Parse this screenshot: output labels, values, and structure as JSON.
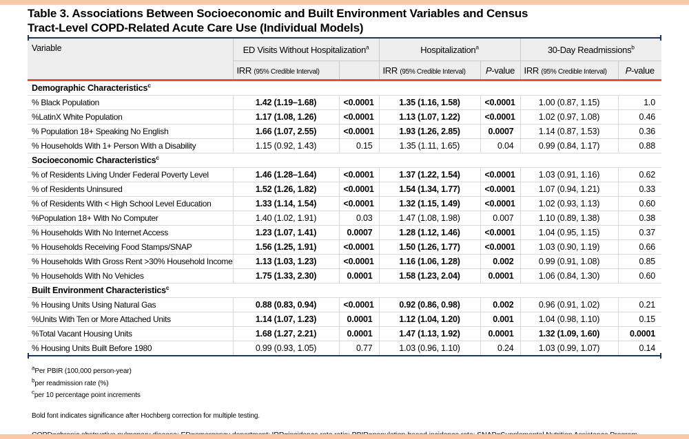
{
  "colors": {
    "accent_bar": "#f9c7a9",
    "rule_navy": "#17365d",
    "rule_orange": "#e8502d",
    "header_bg": "#efeeee"
  },
  "title": {
    "line1": "Table 3. Associations Between Socioeconomic and Built Environment Variables and Census",
    "line2": "Tract-Level COPD-Related Acute Care Use (Individual Models)"
  },
  "table": {
    "header": {
      "variable": "Variable",
      "groups": [
        {
          "label": "ED Visits Without Hospitalization",
          "sup": "a"
        },
        {
          "label": "Hospitalization",
          "sup": "a"
        },
        {
          "label": "30-Day Readmissions",
          "sup": "b"
        }
      ],
      "irr": "IRR",
      "ci": "(95% Credible Interval)",
      "p_italic": "P",
      "p_rest": "-value",
      "ed_p_header": ""
    },
    "sections": [
      {
        "label": "Demographic Characteristics",
        "sup": "c",
        "rows": [
          {
            "variable": "% Black Population",
            "cells": [
              {
                "t": "1.42 (1.19–1.68)",
                "b": true
              },
              {
                "t": "<0.0001",
                "b": true
              },
              {
                "t": "1.35 (1.16, 1.58)",
                "b": true
              },
              {
                "t": "<0.0001",
                "b": true
              },
              {
                "t": "1.00 (0.87, 1.15)",
                "b": false
              },
              {
                "t": "1.0",
                "b": false
              }
            ]
          },
          {
            "variable": "%LatinX White Population",
            "cells": [
              {
                "t": "1.17 (1.08, 1.26)",
                "b": true
              },
              {
                "t": "<0.0001",
                "b": true
              },
              {
                "t": "1.13 (1.07, 1.22)",
                "b": true
              },
              {
                "t": "<0.0001",
                "b": true
              },
              {
                "t": "1.02 (0.97, 1.08)",
                "b": false
              },
              {
                "t": "0.46",
                "b": false
              }
            ]
          },
          {
            "variable": "% Population 18+ Speaking No English",
            "cells": [
              {
                "t": "1.66 (1.07, 2.55)",
                "b": true
              },
              {
                "t": "<0.0001",
                "b": true
              },
              {
                "t": "1.93 (1.26, 2.85)",
                "b": true
              },
              {
                "t": "0.0007",
                "b": true
              },
              {
                "t": "1.14 (0.87, 1.53)",
                "b": false
              },
              {
                "t": "0.36",
                "b": false
              }
            ]
          },
          {
            "variable": "% Households With 1+ Person With a Disability",
            "cells": [
              {
                "t": "1.15 (0.92, 1.43)",
                "b": false
              },
              {
                "t": "0.15",
                "b": false
              },
              {
                "t": "1.35 (1.11, 1.65)",
                "b": false
              },
              {
                "t": "0.04",
                "b": false
              },
              {
                "t": "0.99 (0.84, 1.17)",
                "b": false
              },
              {
                "t": "0.88",
                "b": false
              }
            ]
          }
        ]
      },
      {
        "label": "Socioeconomic Characteristics",
        "sup": "c",
        "rows": [
          {
            "variable": "% of Residents Living Under Federal Poverty Level",
            "cells": [
              {
                "t": "1.46 (1.28–1.64)",
                "b": true
              },
              {
                "t": "<0.0001",
                "b": true
              },
              {
                "t": "1.37 (1.22, 1.54)",
                "b": true
              },
              {
                "t": "<0.0001",
                "b": true
              },
              {
                "t": "1.03 (0.91, 1.16)",
                "b": false
              },
              {
                "t": "0.62",
                "b": false
              }
            ]
          },
          {
            "variable": "% of Residents Uninsured",
            "cells": [
              {
                "t": "1.52 (1.26, 1.82)",
                "b": true
              },
              {
                "t": "<0.0001",
                "b": true
              },
              {
                "t": "1.54 (1.34, 1.77)",
                "b": true
              },
              {
                "t": "<0.0001",
                "b": true
              },
              {
                "t": "1.07 (0.94, 1.21)",
                "b": false
              },
              {
                "t": "0.33",
                "b": false
              }
            ]
          },
          {
            "variable": "% of Residents With < High School Level Education",
            "cells": [
              {
                "t": "1.33 (1.14, 1.54)",
                "b": true
              },
              {
                "t": "<0.0001",
                "b": true
              },
              {
                "t": "1.32 (1.15, 1.49)",
                "b": true
              },
              {
                "t": "<0.0001",
                "b": true
              },
              {
                "t": "1.02 (0.93, 1.13)",
                "b": false
              },
              {
                "t": "0.60",
                "b": false
              }
            ]
          },
          {
            "variable": "%Population 18+ With No Computer",
            "cells": [
              {
                "t": "1.40 (1.02, 1.91)",
                "b": false
              },
              {
                "t": "0.03",
                "b": false
              },
              {
                "t": "1.47 (1.08, 1.98)",
                "b": false
              },
              {
                "t": "0.007",
                "b": false
              },
              {
                "t": "1.10 (0.89, 1.38)",
                "b": false
              },
              {
                "t": "0.38",
                "b": false
              }
            ]
          },
          {
            "variable": "% Households With No Internet Access",
            "cells": [
              {
                "t": "1.23 (1.07, 1.41)",
                "b": true
              },
              {
                "t": "0.0007",
                "b": true
              },
              {
                "t": "1.28 (1.12, 1.46)",
                "b": true
              },
              {
                "t": "<0.0001",
                "b": true
              },
              {
                "t": "1.04 (0.95, 1.15)",
                "b": false
              },
              {
                "t": "0.37",
                "b": false
              }
            ]
          },
          {
            "variable": "% Households Receiving Food Stamps/SNAP",
            "cells": [
              {
                "t": "1.56 (1.25, 1.91)",
                "b": true
              },
              {
                "t": "<0.0001",
                "b": true
              },
              {
                "t": "1.50 (1.26, 1.77)",
                "b": true
              },
              {
                "t": "<0.0001",
                "b": true
              },
              {
                "t": "1.03 (0.90, 1.19)",
                "b": false
              },
              {
                "t": "0.66",
                "b": false
              }
            ]
          },
          {
            "variable": "% Households With Gross Rent >30% Household Income",
            "cells": [
              {
                "t": "1.13 (1.03, 1.23)",
                "b": true
              },
              {
                "t": "<0.0001",
                "b": true
              },
              {
                "t": "1.16 (1.06, 1.28)",
                "b": true
              },
              {
                "t": "0.002",
                "b": true
              },
              {
                "t": "0.99 (0.91, 1.08)",
                "b": false
              },
              {
                "t": "0.85",
                "b": false
              }
            ]
          },
          {
            "variable": "% Households With No Vehicles",
            "cells": [
              {
                "t": "1.75 (1.33, 2.30)",
                "b": true
              },
              {
                "t": "0.0001",
                "b": true
              },
              {
                "t": "1.58 (1.23, 2.04)",
                "b": true
              },
              {
                "t": "0.0001",
                "b": true
              },
              {
                "t": "1.06 (0.84, 1.30)",
                "b": false
              },
              {
                "t": "0.60",
                "b": false
              }
            ]
          }
        ]
      },
      {
        "label": "Built Environment Characteristics",
        "sup": "c",
        "rows": [
          {
            "variable": "% Housing Units Using Natural Gas",
            "cells": [
              {
                "t": "0.88 (0.83, 0.94)",
                "b": true
              },
              {
                "t": "<0.0001",
                "b": true
              },
              {
                "t": "0.92 (0.86, 0.98)",
                "b": true
              },
              {
                "t": "0.002",
                "b": true
              },
              {
                "t": "0.96 (0.91, 1.02)",
                "b": false
              },
              {
                "t": "0.21",
                "b": false
              }
            ]
          },
          {
            "variable": "%Units With Ten or More Attached Units",
            "cells": [
              {
                "t": "1.14 (1.07, 1.23)",
                "b": true
              },
              {
                "t": "0.0001",
                "b": true
              },
              {
                "t": "1.12 (1.04, 1.20)",
                "b": true
              },
              {
                "t": "0.001",
                "b": true
              },
              {
                "t": "1.04 (0.98, 1.10)",
                "b": false
              },
              {
                "t": "0.15",
                "b": false
              }
            ]
          },
          {
            "variable": "%Total Vacant Housing Units",
            "cells": [
              {
                "t": "1.68 (1.27, 2.21)",
                "b": true
              },
              {
                "t": "0.0001",
                "b": true
              },
              {
                "t": "1.47 (1.13, 1.92)",
                "b": true
              },
              {
                "t": "0.0001",
                "b": true
              },
              {
                "t": "1.32 (1.09, 1.60)",
                "b": true
              },
              {
                "t": "0.0001",
                "b": true
              }
            ]
          },
          {
            "variable": "% Housing Units Built Before 1980",
            "cells": [
              {
                "t": "0.99 (0.93, 1.05)",
                "b": false
              },
              {
                "t": "0.77",
                "b": false
              },
              {
                "t": "1.03 (0.96, 1.10)",
                "b": false
              },
              {
                "t": "0.24",
                "b": false
              },
              {
                "t": "1.03 (0.99, 1.07)",
                "b": false
              },
              {
                "t": "0.14",
                "b": false
              }
            ]
          }
        ]
      }
    ]
  },
  "footnotes": [
    {
      "sup": "a",
      "text": "Per PBIR (100,000 person-year)"
    },
    {
      "sup": "b",
      "text": "per readmission rate (%)"
    },
    {
      "sup": "c",
      "text": "per 10 percentage point increments"
    }
  ],
  "bold_note": "Bold font indicates significance after Hochberg correction for multiple testing.",
  "abbreviations": "COPD=chronic obstructive pulmonary disease; ED=emergency department; IRR=incidence rate ratio; PBIR=population-based incidence rate; SNAP=Supplemental Nutrition Assistance Program"
}
